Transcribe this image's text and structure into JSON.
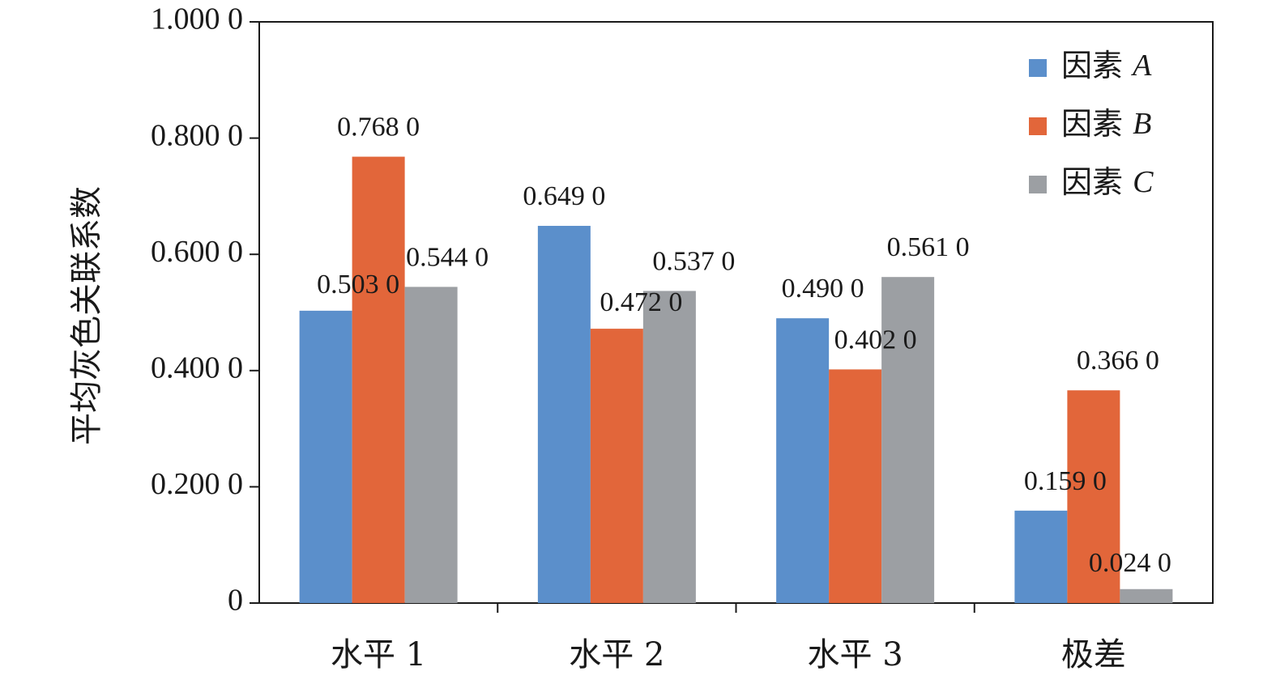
{
  "chart_data": {
    "type": "bar",
    "title": "",
    "xlabel": "",
    "ylabel": "平均灰色关联系数",
    "ylim": [
      0,
      1.0
    ],
    "yticks": [
      0,
      0.2,
      0.4,
      0.6,
      0.8,
      1.0
    ],
    "ytick_labels": [
      "0",
      "0.200 0",
      "0.400 0",
      "0.600 0",
      "0.800 0",
      "1.000 0"
    ],
    "categories": [
      "水平 1",
      "水平 2",
      "水平 3",
      "极差"
    ],
    "series": [
      {
        "name": "因素 A",
        "legend_prefix": "因素 ",
        "legend_italic": "A",
        "color": "#5b8fcb",
        "values": [
          0.503,
          0.649,
          0.49,
          0.159
        ],
        "labels": [
          "0.503 0",
          "0.649 0",
          "0.490 0",
          "0.159 0"
        ]
      },
      {
        "name": "因素 B",
        "legend_prefix": "因素 ",
        "legend_italic": "B",
        "color": "#e2663a",
        "values": [
          0.768,
          0.472,
          0.402,
          0.366
        ],
        "labels": [
          "0.768 0",
          "0.472 0",
          "0.402 0",
          "0.366 0"
        ]
      },
      {
        "name": "因素 C",
        "legend_prefix": "因素 ",
        "legend_italic": "C",
        "color": "#9c9fa3",
        "values": [
          0.544,
          0.537,
          0.561,
          0.024
        ],
        "labels": [
          "0.544 0",
          "0.537 0",
          "0.561 0",
          "0.024 0"
        ]
      }
    ],
    "legend_position": "top-right",
    "grid": false
  }
}
